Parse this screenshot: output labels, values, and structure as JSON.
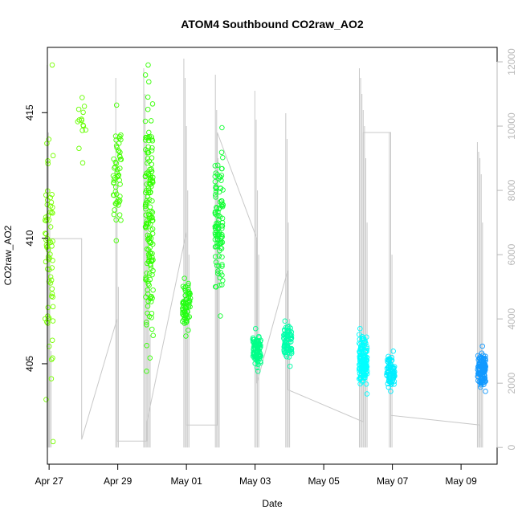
{
  "chart_data": {
    "type": "scatter",
    "title": "ATOM4 Southbound CO2raw_AO2",
    "xlabel": "Date",
    "ylabel": "CO2raw_AO2",
    "y2label": "",
    "x_ticks": [
      {
        "label": "Apr 27",
        "day": 0
      },
      {
        "label": "Apr 29",
        "day": 2
      },
      {
        "label": "May 01",
        "day": 4
      },
      {
        "label": "May 03",
        "day": 6
      },
      {
        "label": "May 05",
        "day": 8
      },
      {
        "label": "May 07",
        "day": 10
      },
      {
        "label": "May 09",
        "day": 12
      }
    ],
    "xlim_days": [
      -0.05,
      13.05
    ],
    "ylim": [
      401.0,
      417.6
    ],
    "y_ticks": [
      405,
      410,
      415
    ],
    "y2lim": [
      -520,
      12450
    ],
    "y2_ticks": [
      0,
      2000,
      4000,
      6000,
      8000,
      10000,
      12000
    ],
    "grid": false,
    "legend": "none",
    "point_clusters": [
      {
        "day": 0.0,
        "ymin": 401.9,
        "ymax": 416.9,
        "n": 70,
        "color": "#77ff00"
      },
      {
        "day": 0.95,
        "ymin": 413.0,
        "ymax": 415.6,
        "n": 14,
        "color": "#66ff00"
      },
      {
        "day": 1.98,
        "ymin": 409.9,
        "ymax": 415.3,
        "n": 55,
        "color": "#44ff00"
      },
      {
        "day": 2.92,
        "ymin": 404.7,
        "ymax": 416.9,
        "n": 160,
        "color": "#33ff00"
      },
      {
        "day": 4.0,
        "ymin": 406.1,
        "ymax": 408.4,
        "n": 65,
        "color": "#22ff11"
      },
      {
        "day": 4.95,
        "ymin": 406.9,
        "ymax": 414.4,
        "n": 110,
        "color": "#11ff33"
      },
      {
        "day": 6.05,
        "ymin": 404.7,
        "ymax": 406.4,
        "n": 90,
        "color": "#00ff88"
      },
      {
        "day": 6.95,
        "ymin": 404.9,
        "ymax": 406.7,
        "n": 80,
        "color": "#00ffaa"
      },
      {
        "day": 9.15,
        "ymin": 403.8,
        "ymax": 406.4,
        "n": 140,
        "color": "#00ffff"
      },
      {
        "day": 9.95,
        "ymin": 403.9,
        "ymax": 405.5,
        "n": 80,
        "color": "#00eeff"
      },
      {
        "day": 12.6,
        "ymin": 403.9,
        "ymax": 405.7,
        "n": 110,
        "color": "#1199ff"
      }
    ],
    "grey_series": {
      "color": "#c8c8c8",
      "spike_groups": [
        {
          "day": 0.0,
          "spikes": [
            11900,
            9800,
            7000,
            3000
          ]
        },
        {
          "day": 1.98,
          "spikes": [
            11500,
            9000,
            5000
          ]
        },
        {
          "day": 2.85,
          "spikes": [
            11800,
            11000,
            9500,
            7000,
            5000,
            3500
          ]
        },
        {
          "day": 4.0,
          "spikes": [
            12100,
            11500,
            10000,
            8000,
            6000
          ]
        },
        {
          "day": 4.9,
          "spikes": [
            11600,
            10500,
            9000,
            7000
          ]
        },
        {
          "day": 6.05,
          "spikes": [
            11100,
            10200,
            8000,
            6000
          ]
        },
        {
          "day": 6.95,
          "spikes": [
            10400,
            9600,
            7000,
            4000
          ]
        },
        {
          "day": 9.15,
          "spikes": [
            11800,
            11500,
            11000,
            10500,
            10000,
            9000,
            7000
          ]
        },
        {
          "day": 9.95,
          "spikes": [
            9800,
            8500,
            6000
          ]
        },
        {
          "day": 12.55,
          "spikes": [
            9500,
            9200,
            9000,
            8500,
            7000
          ]
        }
      ],
      "path": [
        [
          0.0,
          0
        ],
        [
          0.0,
          6500
        ],
        [
          0.95,
          6500
        ],
        [
          0.95,
          250
        ],
        [
          1.98,
          4000
        ],
        [
          1.98,
          200
        ],
        [
          2.85,
          200
        ],
        [
          2.85,
          800
        ],
        [
          4.0,
          6700
        ],
        [
          4.0,
          700
        ],
        [
          4.9,
          700
        ],
        [
          4.9,
          9800
        ],
        [
          6.05,
          6500
        ],
        [
          6.05,
          2000
        ],
        [
          6.95,
          5500
        ],
        [
          6.95,
          1800
        ],
        [
          9.15,
          800
        ],
        [
          9.15,
          9800
        ],
        [
          9.95,
          9800
        ],
        [
          9.95,
          1000
        ],
        [
          12.55,
          700
        ],
        [
          12.55,
          300
        ]
      ]
    }
  }
}
